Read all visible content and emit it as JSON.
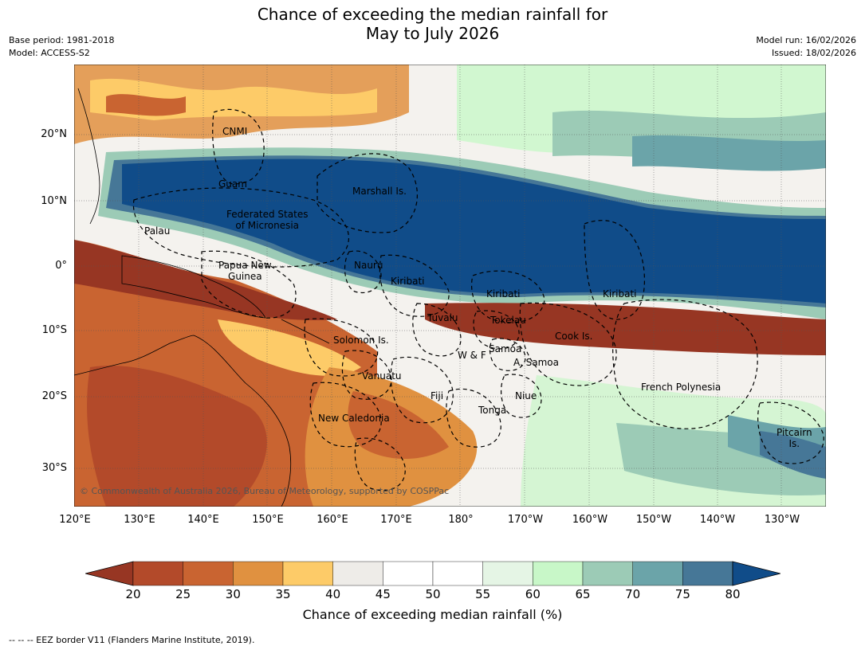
{
  "title": {
    "line1": "Chance of exceeding the median rainfall for",
    "line2": "May to July 2026"
  },
  "meta_left": {
    "base_period": "Base period: 1981-2018",
    "model": "Model: ACCESS-S2"
  },
  "meta_right": {
    "model_run": "Model run: 16/02/2026",
    "issued": "Issued: 18/02/2026"
  },
  "latitude_labels": [
    "20°N",
    "10°N",
    "0°",
    "10°S",
    "20°S",
    "30°S"
  ],
  "longitude_labels": [
    "120°E",
    "130°E",
    "140°E",
    "150°E",
    "160°E",
    "170°E",
    "180°",
    "170°W",
    "160°W",
    "150°W",
    "140°W",
    "130°W"
  ],
  "places": {
    "cnmi": "CNMI",
    "guam": "Guam",
    "marshall": "Marshall Is.",
    "fsm_line1": "Federated States",
    "fsm_line2": "of Micronesia",
    "palau": "Palau",
    "png_line1": "Papua New",
    "png_line2": "Guinea",
    "nauru": "Nauru",
    "kiribati_w": "Kiribati",
    "kiribati_c": "Kiribati",
    "kiribati_e": "Kiribati",
    "tuvalu": "Tuvalu",
    "tokelau": "Tokelau",
    "cook": "Cook Is.",
    "solomon": "Solomon Is.",
    "wf": "W & F",
    "samoa": "Samoa",
    "asamoa": "A. Samoa",
    "vanuatu": "Vanuatu",
    "fiji": "Fiji",
    "niue": "Niue",
    "tonga": "Tonga",
    "french_polynesia": "French Polynesia",
    "new_caledonia": "New Caledonia",
    "pitcairn_line1": "Pitcairn",
    "pitcairn_line2": "Is."
  },
  "copyright": "© Commonwealth of Australia 2026, Bureau of Meteorology, supported by COSPPac",
  "colorbar": {
    "label": "Chance of exceeding median rainfall (%)",
    "ticks": [
      "20",
      "25",
      "30",
      "35",
      "40",
      "45",
      "50",
      "55",
      "60",
      "65",
      "70",
      "75",
      "80"
    ],
    "colors": [
      "#973623",
      "#b34a2a",
      "#c96431",
      "#e09140",
      "#fdcb68",
      "#eeece8",
      "#ffffff",
      "#ffffff",
      "#e5f5e5",
      "#c8f7c8",
      "#9ccbb6",
      "#6ba4a9",
      "#467797",
      "#104c89"
    ]
  },
  "footnote": "--  --  -- EEZ border V11 (Flanders Marine Institute, 2019)."
}
